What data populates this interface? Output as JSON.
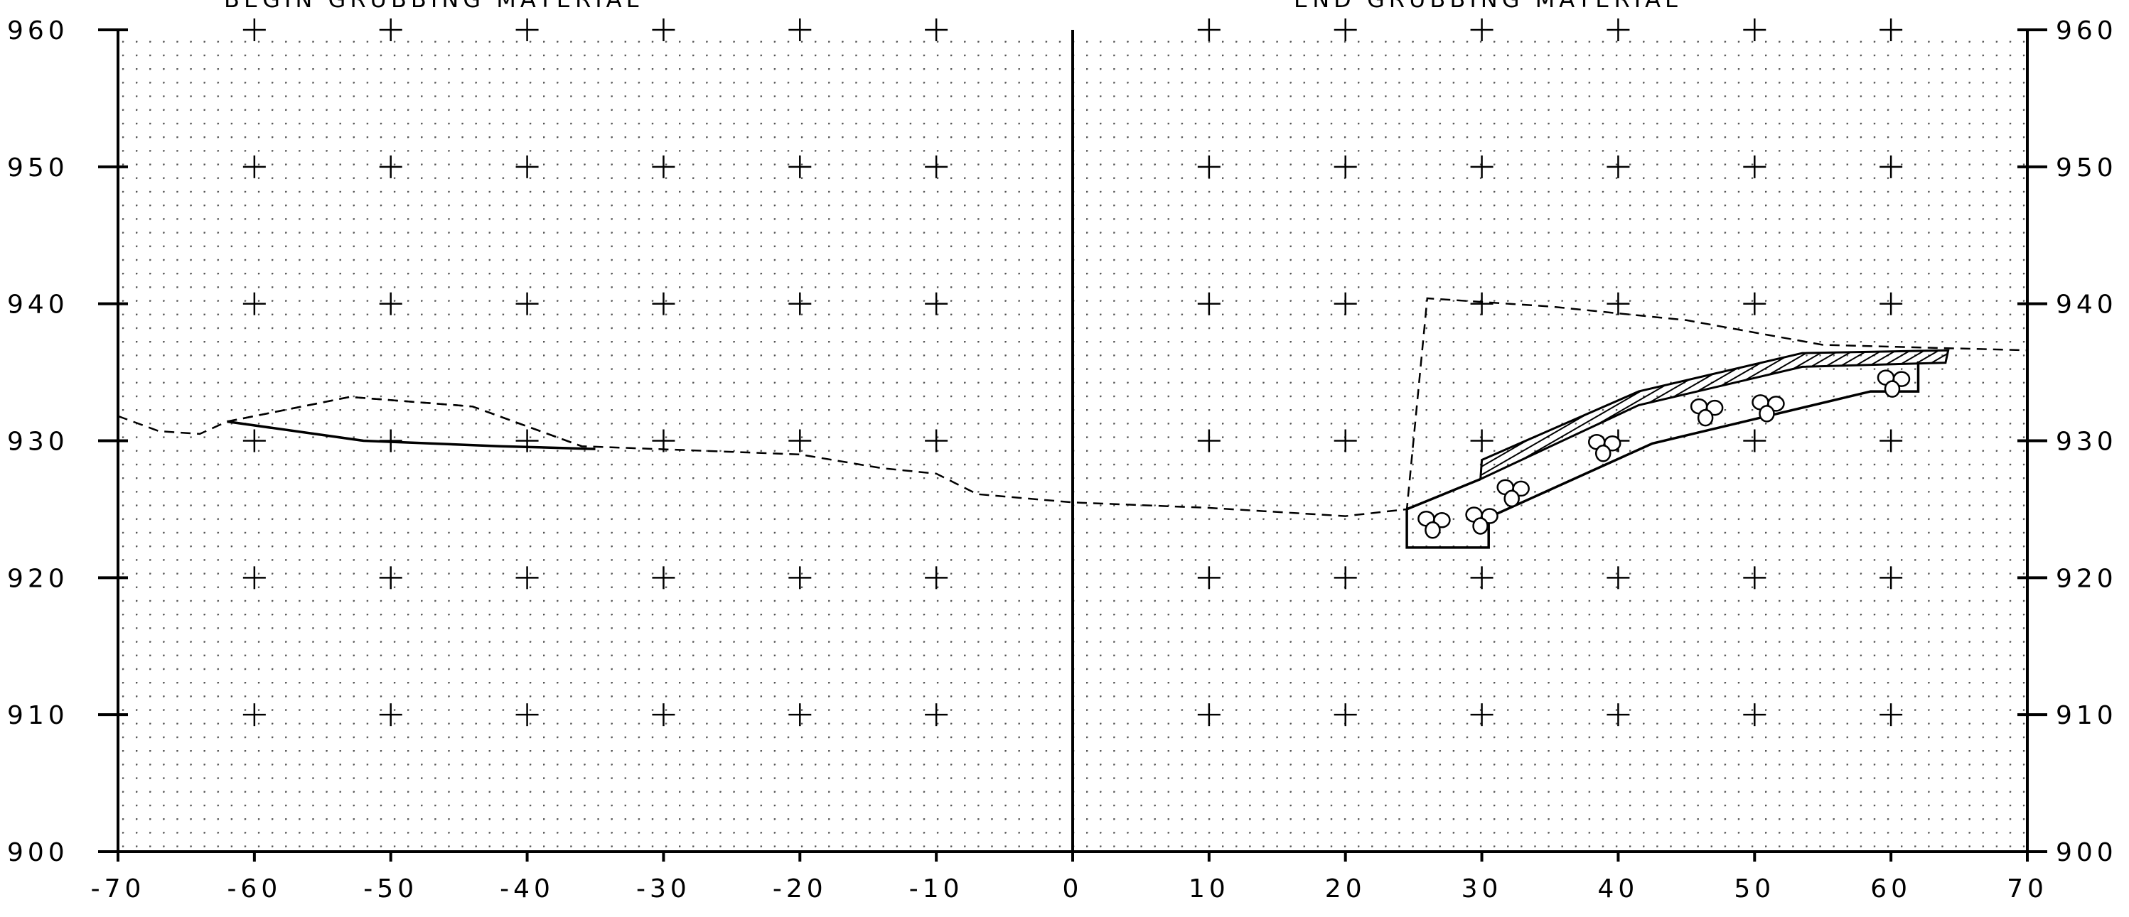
{
  "titles": {
    "left": "BEGIN GRUBBING MATERIAL",
    "right": "END GRUBBING MATERIAL"
  },
  "axes": {
    "x_ticks": [
      -70,
      -60,
      -50,
      -40,
      -30,
      -20,
      -10,
      0,
      10,
      20,
      30,
      40,
      50,
      60,
      70
    ],
    "x_labels": [
      "-70",
      "-60",
      "-50",
      "-40",
      "-30",
      "-20",
      "-10",
      "0",
      "10",
      "20",
      "30",
      "40",
      "50",
      "60",
      "70"
    ],
    "y_ticks": [
      960,
      950,
      940,
      930,
      920,
      910,
      900
    ],
    "y_labels": [
      "960",
      "950",
      "940",
      "930",
      "920",
      "910",
      "900"
    ],
    "x_range": [
      -70,
      70
    ],
    "y_range": [
      900,
      960
    ],
    "fine_grid": "dotted"
  },
  "profiles": {
    "existing_ground": [
      [
        -70,
        931.8
      ],
      [
        -67,
        930.7
      ],
      [
        -64,
        930.5
      ],
      [
        -62,
        931.4
      ],
      [
        -53,
        933.2
      ],
      [
        -44,
        932.5
      ],
      [
        -36,
        929.6
      ],
      [
        -20,
        929.0
      ],
      [
        -14,
        928.0
      ],
      [
        -10,
        927.6
      ],
      [
        -7,
        926.1
      ],
      [
        0,
        925.5
      ],
      [
        10,
        925.1
      ],
      [
        20,
        924.5
      ],
      [
        24.5,
        925.0
      ],
      [
        26,
        940.4
      ],
      [
        35,
        939.8
      ],
      [
        45,
        938.8
      ],
      [
        55,
        937.0
      ],
      [
        70,
        936.6
      ]
    ],
    "stripping_upper": [
      [
        -62,
        931.4
      ],
      [
        -53,
        933.2
      ],
      [
        -44,
        932.5
      ],
      [
        -36,
        929.6
      ]
    ],
    "stripping_lower": [
      [
        -62,
        931.4
      ],
      [
        -52,
        930.0
      ],
      [
        -42,
        929.6
      ],
      [
        -35,
        929.4
      ]
    ],
    "riprap_trench": [
      [
        24.5,
        925.0
      ],
      [
        24.5,
        922.2
      ],
      [
        30.5,
        922.2
      ],
      [
        30.5,
        924.4
      ]
    ],
    "riprap_bottom": [
      [
        30.5,
        924.4
      ],
      [
        42.5,
        929.8
      ],
      [
        58.5,
        933.6
      ],
      [
        62.0,
        933.6
      ],
      [
        62.0,
        935.8
      ]
    ],
    "riprap_top": [
      [
        24.5,
        925.0
      ],
      [
        29.9,
        927.2
      ]
    ],
    "bedding": [
      [
        29.9,
        927.2
      ],
      [
        41.5,
        932.6
      ],
      [
        53.5,
        935.4
      ],
      [
        64.0,
        935.7
      ],
      [
        64.2,
        936.6
      ],
      [
        53.5,
        936.4
      ],
      [
        41.5,
        933.6
      ],
      [
        30.0,
        928.6
      ]
    ],
    "stone_groups": [
      [
        26.5,
        924.1
      ],
      [
        30.0,
        924.4
      ],
      [
        32.3,
        926.4
      ],
      [
        39.0,
        929.7
      ],
      [
        46.5,
        932.3
      ],
      [
        51.0,
        932.6
      ],
      [
        60.2,
        934.4
      ]
    ]
  }
}
